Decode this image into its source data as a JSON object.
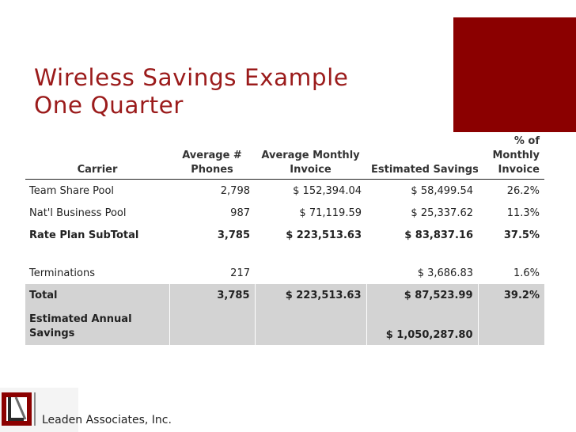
{
  "slide": {
    "title_line1": "Wireless Savings Example",
    "title_line2": "One Quarter",
    "company": "Leaden Associates, Inc.",
    "accent_color": "#8b0000",
    "title_color": "#9b1b1b"
  },
  "table": {
    "headers": {
      "carrier": "Carrier",
      "phones_l1": "Average #",
      "phones_l2": "Phones",
      "invoice_l1": "Average Monthly",
      "invoice_l2": "Invoice",
      "savings": "Estimated Savings",
      "pct_l1": "% of",
      "pct_l2": "Monthly",
      "pct_l3": "Invoice"
    },
    "rows": [
      {
        "carrier": "Team Share Pool",
        "phones": "2,798",
        "invoice": "$ 152,394.04",
        "savings": "$  58,499.54",
        "pct": "26.2%"
      },
      {
        "carrier": "Nat'l Business Pool",
        "phones": "987",
        "invoice": "$   71,119.59",
        "savings": "$  25,337.62",
        "pct": "11.3%"
      },
      {
        "carrier": "Rate Plan SubTotal",
        "phones": "3,785",
        "invoice": "$ 223,513.63",
        "savings": "$  83,837.16",
        "pct": "37.5%"
      },
      {
        "carrier": "Terminations",
        "phones": "217",
        "invoice": "",
        "savings": "$    3,686.83",
        "pct": "1.6%"
      },
      {
        "carrier": "Total",
        "phones": "3,785",
        "invoice": "$ 223,513.63",
        "savings": "$  87,523.99",
        "pct": "39.2%"
      },
      {
        "carrier": "Estimated Annual Savings",
        "phones": "",
        "invoice": "",
        "savings": "$ 1,050,287.80",
        "pct": ""
      }
    ]
  }
}
